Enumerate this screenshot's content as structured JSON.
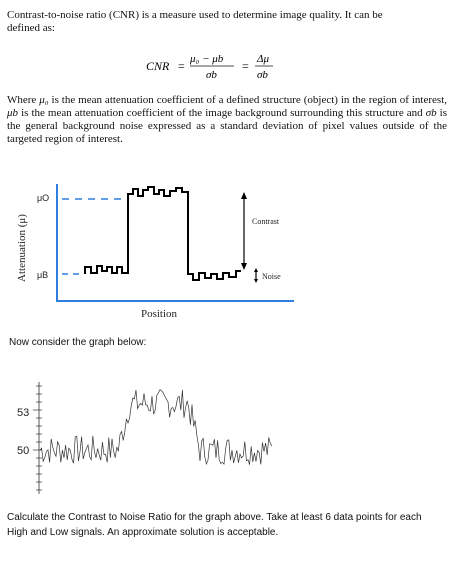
{
  "intro": {
    "line1": "Contrast-to-noise ratio (CNR) is a measure used to determine image quality.  It can be",
    "line2": "defined as:"
  },
  "formula": {
    "lhs": "CNR",
    "eq1": "=",
    "num1": "μ₀ − μb",
    "den1": "σb",
    "eq2": "=",
    "num2": "Δμ",
    "den2": "σb"
  },
  "where": {
    "p1": "Where ",
    "mu0": "μ₀",
    "p2": " is the mean attenuation coefficient of a defined structure (object) in the region of interest, ",
    "mub": "μb",
    "p3": " is the mean attenuation coefficient of the image background surrounding this structure and ",
    "sigb": "σb",
    "p4": " is the general background noise expressed as a standard deviation of pixel values outside of the targeted region of interest."
  },
  "figure1": {
    "ylabel": "Attenuation (μ)",
    "mu0_label": "μO",
    "mub_label": "μB",
    "contrast_label": "Contrast",
    "noise_label": "Noise",
    "xlabel": "Position",
    "axis_color": "#2f7fe0",
    "signal_color": "#000000"
  },
  "prompt2": "Now consider the graph below:",
  "figure2": {
    "tick_53": "53",
    "tick_50": "50",
    "high_level": 53.5,
    "low_level": 50
  },
  "question": {
    "line1": "Calculate the Contrast to Noise Ratio for the graph above. Take at least 6 data points for each",
    "line2": "High and Low signals. An approximate solution is acceptable."
  }
}
